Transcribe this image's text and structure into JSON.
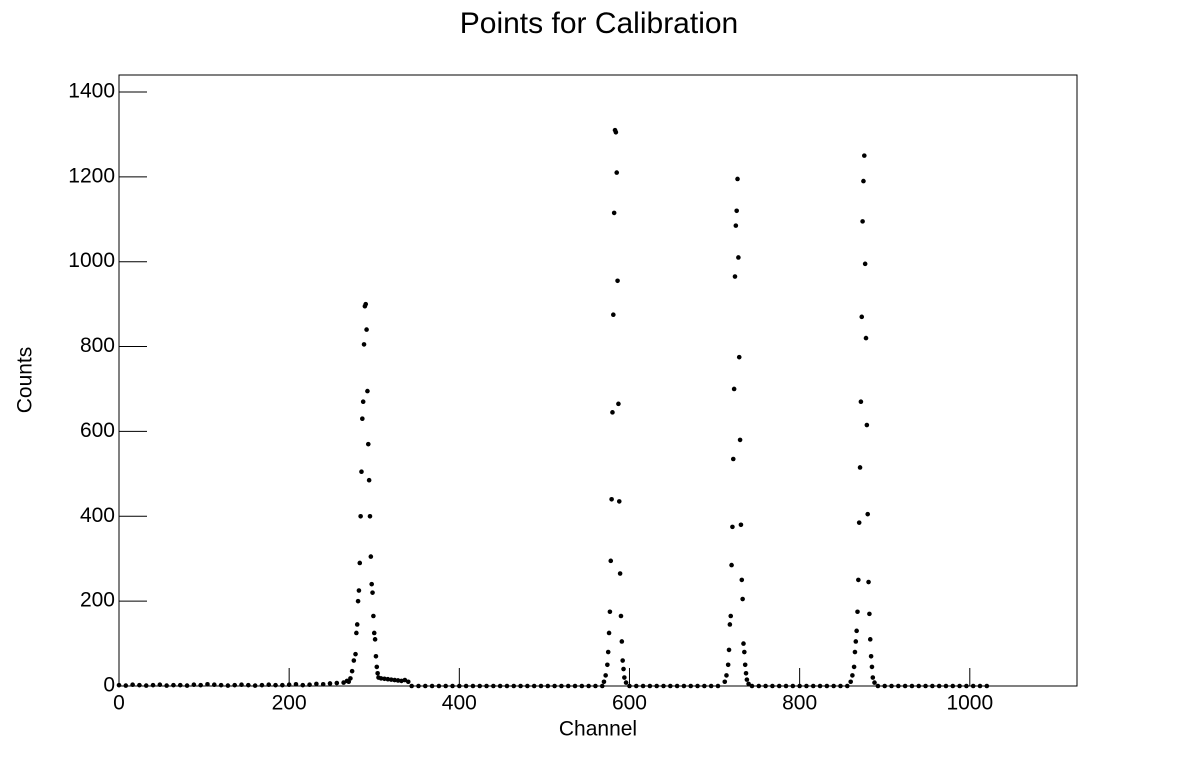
{
  "chart_data": {
    "type": "scatter",
    "title": "Points for Calibration",
    "x_label": "Channel",
    "y_label": "Counts",
    "xlim": [
      0,
      1126
    ],
    "ylim": [
      0,
      1440
    ],
    "xticks": [
      0,
      200,
      400,
      600,
      800,
      1000
    ],
    "yticks": [
      0,
      200,
      400,
      600,
      800,
      1000,
      1200,
      1400
    ],
    "color": "#000000",
    "x": [
      0,
      8,
      16,
      24,
      32,
      40,
      48,
      56,
      64,
      72,
      80,
      88,
      96,
      104,
      112,
      120,
      128,
      136,
      144,
      152,
      160,
      168,
      176,
      184,
      192,
      200,
      208,
      216,
      224,
      232,
      240,
      248,
      256,
      264,
      268,
      270,
      272,
      274,
      276,
      278,
      279,
      280,
      281,
      282,
      283,
      284,
      285,
      286,
      287,
      288,
      289,
      290,
      291,
      292,
      293,
      294,
      295,
      296,
      297,
      298,
      299,
      300,
      301,
      302,
      303,
      304,
      305,
      308,
      312,
      316,
      320,
      324,
      328,
      332,
      336,
      340,
      344,
      352,
      360,
      368,
      376,
      384,
      392,
      400,
      408,
      416,
      424,
      432,
      440,
      448,
      456,
      464,
      472,
      480,
      488,
      496,
      504,
      512,
      520,
      528,
      536,
      544,
      552,
      560,
      568,
      570,
      572,
      574,
      575,
      576,
      577,
      578,
      579,
      580,
      581,
      582,
      583,
      584,
      585,
      586,
      587,
      588,
      589,
      590,
      591,
      592,
      593,
      594,
      596,
      600,
      608,
      616,
      624,
      632,
      640,
      648,
      656,
      664,
      672,
      680,
      688,
      696,
      704,
      712,
      714,
      716,
      717,
      718,
      719,
      720,
      721,
      722,
      723,
      724,
      725,
      726,
      727,
      728,
      729,
      730,
      731,
      732,
      733,
      734,
      735,
      736,
      737,
      738,
      740,
      744,
      752,
      760,
      768,
      776,
      784,
      792,
      800,
      808,
      816,
      824,
      832,
      840,
      848,
      856,
      860,
      862,
      864,
      865,
      866,
      867,
      868,
      869,
      870,
      871,
      872,
      873,
      874,
      875,
      876,
      877,
      878,
      879,
      880,
      881,
      882,
      883,
      884,
      885,
      886,
      888,
      892,
      900,
      908,
      916,
      924,
      932,
      940,
      948,
      956,
      964,
      972,
      980,
      988,
      996,
      1004,
      1012,
      1020
    ],
    "values": [
      2,
      1,
      3,
      2,
      1,
      2,
      3,
      1,
      2,
      2,
      1,
      3,
      2,
      4,
      3,
      2,
      1,
      2,
      3,
      2,
      1,
      2,
      3,
      2,
      2,
      3,
      4,
      2,
      3,
      5,
      4,
      6,
      7,
      8,
      12,
      10,
      18,
      35,
      60,
      75,
      125,
      145,
      200,
      225,
      290,
      400,
      505,
      630,
      670,
      805,
      895,
      900,
      840,
      695,
      570,
      485,
      400,
      305,
      240,
      220,
      165,
      125,
      110,
      70,
      45,
      30,
      20,
      18,
      17,
      16,
      15,
      14,
      13,
      12,
      14,
      10,
      0,
      0,
      0,
      0,
      0,
      0,
      0,
      0,
      0,
      0,
      0,
      0,
      0,
      0,
      0,
      0,
      0,
      0,
      0,
      0,
      0,
      0,
      0,
      0,
      0,
      0,
      0,
      0,
      0,
      10,
      25,
      50,
      80,
      125,
      175,
      295,
      440,
      645,
      875,
      1115,
      1310,
      1305,
      1210,
      955,
      665,
      435,
      265,
      165,
      105,
      60,
      40,
      20,
      8,
      0,
      0,
      0,
      0,
      0,
      0,
      0,
      0,
      0,
      0,
      0,
      0,
      0,
      0,
      10,
      25,
      50,
      85,
      145,
      165,
      285,
      375,
      535,
      700,
      965,
      1085,
      1120,
      1195,
      1010,
      775,
      580,
      380,
      250,
      205,
      100,
      80,
      50,
      30,
      15,
      5,
      0,
      0,
      0,
      0,
      0,
      0,
      0,
      0,
      0,
      0,
      0,
      0,
      0,
      0,
      0,
      10,
      25,
      45,
      80,
      105,
      130,
      175,
      250,
      385,
      515,
      670,
      870,
      1095,
      1190,
      1250,
      995,
      820,
      615,
      405,
      245,
      170,
      110,
      70,
      45,
      20,
      8,
      0,
      0,
      0,
      0,
      0,
      0,
      0,
      0,
      0,
      0,
      0,
      0,
      0,
      0,
      0,
      0,
      0
    ]
  }
}
